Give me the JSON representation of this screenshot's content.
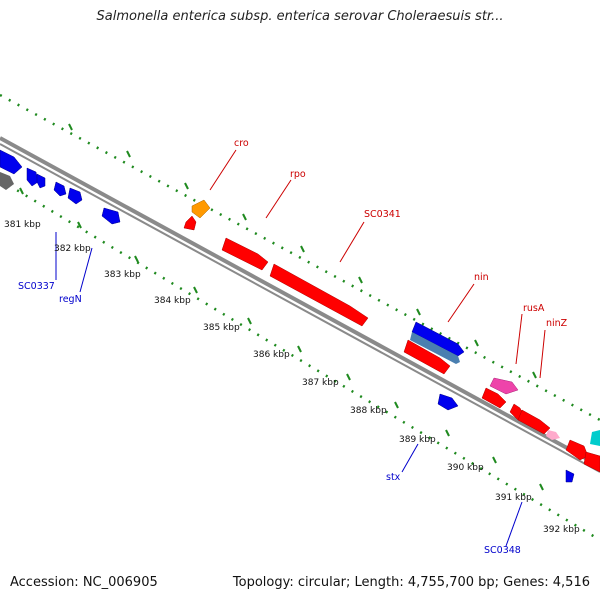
{
  "title": "Salmonella enterica subsp. enterica serovar Choleraesuis str...",
  "footer": {
    "accession": "Accession: NC_006905",
    "summary": "Topology: circular; Length: 4,755,700 bp; Genes: 4,516"
  },
  "colors": {
    "forward_gene": "#ff0000",
    "reverse_gene": "#0000ee",
    "orange_gene": "#ff9900",
    "pink_gene": "#ee44aa",
    "cyan_gene": "#00cccc",
    "steel_gene": "#4a7fb0",
    "gray_gene": "#666666",
    "backbone": "#8a8a8a",
    "dotted_track": "#1f8a1f",
    "forward_label": "#cc0000",
    "reverse_label": "#0000cc"
  },
  "scale_labels": [
    "381 kbp",
    "382 kbp",
    "383 kbp",
    "384 kbp",
    "385 kbp",
    "386 kbp",
    "387 kbp",
    "388 kbp",
    "389 kbp",
    "390 kbp",
    "391 kbp",
    "392 kbp"
  ],
  "forward_labels": [
    "cro",
    "rpo",
    "SC0341",
    "nin",
    "rusA",
    "ninZ"
  ],
  "reverse_labels": [
    "SC0337",
    "regN",
    "stx",
    "SC0348"
  ]
}
